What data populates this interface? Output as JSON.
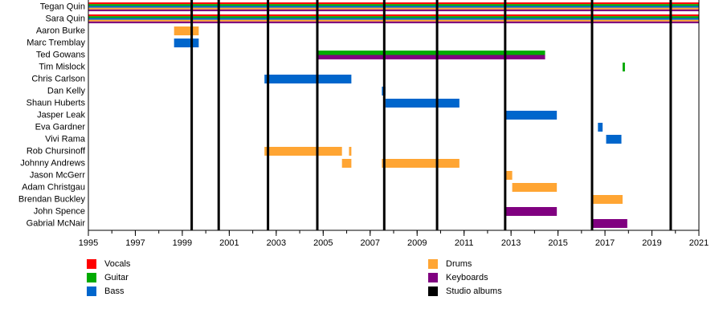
{
  "chart_data": {
    "type": "timeline",
    "xlim": [
      1995,
      2021
    ],
    "ticks": [
      1995,
      1997,
      1999,
      2001,
      2003,
      2005,
      2007,
      2009,
      2011,
      2013,
      2015,
      2017,
      2019,
      2021
    ],
    "members": [
      "Tegan Quin",
      "Sara Quin",
      "Aaron Burke",
      "Marc Tremblay",
      "Ted Gowans",
      "Tim Mislock",
      "Chris Carlson",
      "Dan Kelly",
      "Shaun Huberts",
      "Jasper Leak",
      "Eva Gardner",
      "Vivi Rama",
      "Rob Chursinoff",
      "Johnny Andrews",
      "Jason McGerr",
      "Adam Christgau",
      "Brendan Buckley",
      "John Spence",
      "Gabrial McNair"
    ],
    "roles": [
      {
        "key": "vocals",
        "label": "Vocals",
        "color": "#ff0000"
      },
      {
        "key": "guitar",
        "label": "Guitar",
        "color": "#00aa00"
      },
      {
        "key": "bass",
        "label": "Bass",
        "color": "#0066cc"
      },
      {
        "key": "drums",
        "label": "Drums",
        "color": "#ffa533"
      },
      {
        "key": "keyboards",
        "label": "Keyboards",
        "color": "#800080"
      },
      {
        "key": "albums",
        "label": "Studio albums",
        "color": "#000000"
      }
    ],
    "bars": [
      {
        "member": "Tegan Quin",
        "start": 1995,
        "end": 2021,
        "roles": [
          "vocals",
          "guitar",
          "bass",
          "drums",
          "keyboards"
        ]
      },
      {
        "member": "Sara Quin",
        "start": 1995,
        "end": 2021,
        "roles": [
          "vocals",
          "guitar",
          "bass",
          "drums",
          "keyboards"
        ]
      },
      {
        "member": "Aaron Burke",
        "start": 1998.65,
        "end": 1999.7,
        "roles": [
          "drums"
        ]
      },
      {
        "member": "Marc Tremblay",
        "start": 1998.65,
        "end": 1999.7,
        "roles": [
          "bass"
        ]
      },
      {
        "member": "Ted Gowans",
        "start": 2004.8,
        "end": 2014.45,
        "roles": [
          "guitar",
          "keyboards"
        ]
      },
      {
        "member": "Tim Mislock",
        "start": 2017.75,
        "end": 2017.85,
        "roles": [
          "guitar"
        ]
      },
      {
        "member": "Chris Carlson",
        "start": 2002.5,
        "end": 2006.2,
        "roles": [
          "bass"
        ]
      },
      {
        "member": "Dan Kelly",
        "start": 2007.5,
        "end": 2007.65,
        "roles": [
          "bass"
        ]
      },
      {
        "member": "Shaun Huberts",
        "start": 2007.65,
        "end": 2010.8,
        "roles": [
          "bass"
        ]
      },
      {
        "member": "Jasper Leak",
        "start": 2012.75,
        "end": 2014.95,
        "roles": [
          "bass"
        ]
      },
      {
        "member": "Eva Gardner",
        "start": 2016.7,
        "end": 2016.9,
        "roles": [
          "bass"
        ]
      },
      {
        "member": "Vivi Rama",
        "start": 2017.05,
        "end": 2017.7,
        "roles": [
          "bass"
        ]
      },
      {
        "member": "Rob Chursinoff",
        "start": 2002.5,
        "end": 2005.8,
        "roles": [
          "drums"
        ]
      },
      {
        "member": "Rob Chursinoff",
        "start": 2006.1,
        "end": 2006.2,
        "roles": [
          "drums"
        ]
      },
      {
        "member": "Johnny Andrews",
        "start": 2005.8,
        "end": 2006.2,
        "roles": [
          "drums"
        ]
      },
      {
        "member": "Johnny Andrews",
        "start": 2007.5,
        "end": 2010.8,
        "roles": [
          "drums"
        ]
      },
      {
        "member": "Jason McGerr",
        "start": 2012.75,
        "end": 2013.05,
        "roles": [
          "drums"
        ]
      },
      {
        "member": "Adam Christgau",
        "start": 2013.05,
        "end": 2014.95,
        "roles": [
          "drums"
        ]
      },
      {
        "member": "Brendan Buckley",
        "start": 2016.5,
        "end": 2017.75,
        "roles": [
          "drums"
        ]
      },
      {
        "member": "John Spence",
        "start": 2012.75,
        "end": 2014.95,
        "roles": [
          "keyboards"
        ]
      },
      {
        "member": "Gabrial McNair",
        "start": 2016.5,
        "end": 2017.95,
        "roles": [
          "keyboards"
        ]
      }
    ],
    "albums": [
      1999.4,
      2000.55,
      2002.65,
      2004.75,
      2007.6,
      2009.85,
      2012.75,
      2016.45,
      2019.8
    ],
    "legend_left": [
      "vocals",
      "guitar",
      "bass"
    ],
    "legend_right": [
      "drums",
      "keyboards",
      "albums"
    ]
  }
}
